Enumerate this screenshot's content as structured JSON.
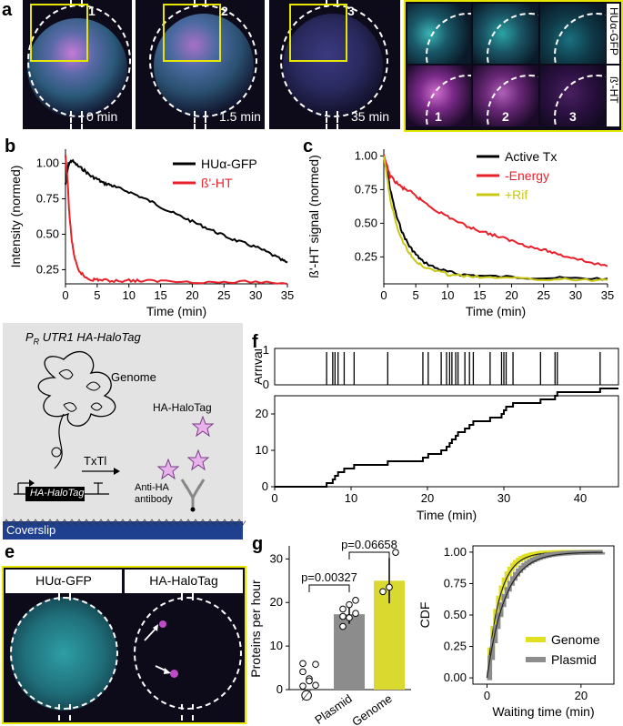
{
  "panels": {
    "a": "a",
    "b": "b",
    "c": "c",
    "d": "d",
    "e": "e",
    "f": "f",
    "g": "g"
  },
  "panel_a": {
    "frames": [
      {
        "num": "1",
        "time": "0 min"
      },
      {
        "num": "2",
        "time": "1.5 min"
      },
      {
        "num": "3",
        "time": "35 min"
      }
    ],
    "inset_labels": {
      "top": "HUα-GFP",
      "bottom": "ß'-HT"
    },
    "inset_nums": [
      "1",
      "2",
      "3"
    ]
  },
  "panel_d": {
    "title_prefix": "P",
    "title_sub": "R",
    "title_rest": " UTR1 HA-HaloTag",
    "genome": "Genome",
    "halotag": "HA-HaloTag",
    "txtl": "TxTl",
    "gene": "HA-HaloTag",
    "antibody1": "Anti-HA",
    "antibody2": "antibody",
    "coverslip": "Coverslip"
  },
  "panel_e": {
    "left": "HUα-GFP",
    "right": "HA-HaloTag"
  },
  "chart_data": [
    {
      "id": "b",
      "type": "line",
      "xlabel": "Time (min)",
      "ylabel": "Intensity (normed)",
      "xlim": [
        0,
        35
      ],
      "ylim": [
        0.15,
        1.1
      ],
      "xticks": [
        "0",
        "5",
        "10",
        "15",
        "20",
        "25",
        "30",
        "35"
      ],
      "yticks": [
        "0.25",
        "0.50",
        "0.75",
        "1.00"
      ],
      "series": [
        {
          "name": "HUα-GFP",
          "color": "#000000",
          "x": [
            0,
            0.5,
            1,
            2,
            3,
            4,
            5,
            6,
            7,
            8,
            10,
            12,
            14,
            16,
            18,
            20,
            22,
            24,
            26,
            28,
            30,
            32,
            34,
            35
          ],
          "y": [
            0.85,
            1.0,
            1.02,
            0.98,
            0.95,
            0.91,
            0.89,
            0.86,
            0.85,
            0.83,
            0.8,
            0.76,
            0.72,
            0.67,
            0.63,
            0.59,
            0.55,
            0.51,
            0.47,
            0.44,
            0.41,
            0.37,
            0.32,
            0.3
          ]
        },
        {
          "name": "ß'-HT",
          "color": "#e8202a",
          "x": [
            0,
            0.3,
            0.6,
            1,
            1.5,
            2,
            3,
            4,
            5,
            6,
            8,
            10,
            12,
            15,
            20,
            25,
            30,
            35
          ],
          "y": [
            1.05,
            0.9,
            0.65,
            0.45,
            0.32,
            0.25,
            0.2,
            0.18,
            0.18,
            0.175,
            0.17,
            0.175,
            0.17,
            0.17,
            0.165,
            0.16,
            0.165,
            0.15
          ]
        }
      ]
    },
    {
      "id": "c",
      "type": "line",
      "xlabel": "Time (min)",
      "ylabel": "ß'-HT signal (normed)",
      "xlim": [
        0,
        35
      ],
      "ylim": [
        0.05,
        1.05
      ],
      "xticks": [
        "0",
        "5",
        "10",
        "15",
        "20",
        "25",
        "30",
        "35"
      ],
      "yticks": [
        "0.25",
        "0.50",
        "0.75",
        "1.00"
      ],
      "series": [
        {
          "name": "Active Tx",
          "color": "#000000",
          "x": [
            0,
            0.5,
            1,
            2,
            3,
            4,
            5,
            6,
            8,
            10,
            12,
            15,
            20,
            25,
            30,
            35
          ],
          "y": [
            1.0,
            0.9,
            0.75,
            0.55,
            0.42,
            0.33,
            0.27,
            0.22,
            0.17,
            0.14,
            0.12,
            0.11,
            0.1,
            0.095,
            0.09,
            0.09
          ]
        },
        {
          "name": "-Energy",
          "color": "#e8202a",
          "x": [
            0,
            1,
            2,
            3,
            4,
            5,
            6,
            8,
            10,
            12,
            14,
            16,
            18,
            20,
            22,
            24,
            26,
            28,
            30,
            32,
            35
          ],
          "y": [
            1.0,
            0.85,
            0.8,
            0.76,
            0.74,
            0.7,
            0.67,
            0.6,
            0.55,
            0.5,
            0.46,
            0.43,
            0.4,
            0.37,
            0.34,
            0.31,
            0.29,
            0.26,
            0.24,
            0.21,
            0.18
          ]
        },
        {
          "name": "+Rif",
          "color": "#c8c813",
          "x": [
            0,
            0.5,
            1,
            2,
            3,
            4,
            5,
            6,
            8,
            10,
            12,
            15,
            20,
            25,
            30,
            35
          ],
          "y": [
            1.0,
            0.85,
            0.68,
            0.48,
            0.36,
            0.28,
            0.22,
            0.18,
            0.15,
            0.12,
            0.11,
            0.1,
            0.09,
            0.085,
            0.08,
            0.08
          ]
        }
      ]
    },
    {
      "id": "f-arrival",
      "type": "scatter",
      "ylabel": "Arrival",
      "xlim": [
        0,
        45
      ],
      "ylim": [
        0,
        1
      ],
      "yticks": [
        "0",
        "1"
      ],
      "arrivals": [
        6.8,
        7.6,
        7.9,
        8.3,
        9.1,
        10.4,
        14.8,
        19.4,
        20.1,
        21.8,
        22.5,
        22.9,
        23.2,
        23.7,
        24.0,
        24.9,
        25.5,
        26.0,
        28.2,
        29.7,
        30.0,
        30.3,
        31.2,
        34.8,
        36.7,
        37.0,
        42.6
      ]
    },
    {
      "id": "f-counter",
      "type": "line",
      "xlabel": "Time (min)",
      "ylabel": "Counter",
      "xlim": [
        0,
        45
      ],
      "ylim": [
        0,
        25
      ],
      "xticks": [
        "0",
        "10",
        "20",
        "30",
        "40"
      ],
      "yticks": [
        "0",
        "10",
        "20"
      ]
    },
    {
      "id": "g-bar",
      "type": "bar",
      "ylabel": "Proteins per hour",
      "categories": [
        "∅",
        "Plasmid",
        "Genome"
      ],
      "values": [
        0,
        17.3,
        25
      ],
      "errors": [
        0,
        2.2,
        5.2
      ],
      "colors": [
        "#ffffff",
        "#8c8c8c",
        "#d9d930"
      ],
      "ylim": [
        0,
        33
      ],
      "yticks": [
        "0",
        "10",
        "20",
        "30"
      ],
      "points": [
        [
          0.8,
          2.5,
          5.8,
          6.0,
          2.0,
          1.0,
          4.1
        ],
        [
          14.5,
          16.5,
          17.5,
          18.5,
          19.5,
          20.5,
          16.8
        ],
        [
          22.5,
          23.5,
          31.5
        ]
      ],
      "annotations": [
        {
          "text": "p=0.00327",
          "from": 0,
          "to": 1
        },
        {
          "text": "p=0.06658",
          "from": 1,
          "to": 2
        }
      ]
    },
    {
      "id": "g-cdf",
      "type": "line",
      "xlabel": "Waiting time (min)",
      "ylabel": "CDF",
      "xlim": [
        -3,
        27
      ],
      "ylim": [
        -0.05,
        1.05
      ],
      "xticks": [
        "0",
        "20"
      ],
      "yticks": [
        "0.00",
        "0.25",
        "0.50",
        "0.75",
        "1.00"
      ],
      "series": [
        {
          "name": "Genome",
          "color": "#e0e020",
          "rate": 0.42
        },
        {
          "name": "Plasmid",
          "color": "#8c8c8c",
          "rate": 0.29
        }
      ]
    }
  ]
}
